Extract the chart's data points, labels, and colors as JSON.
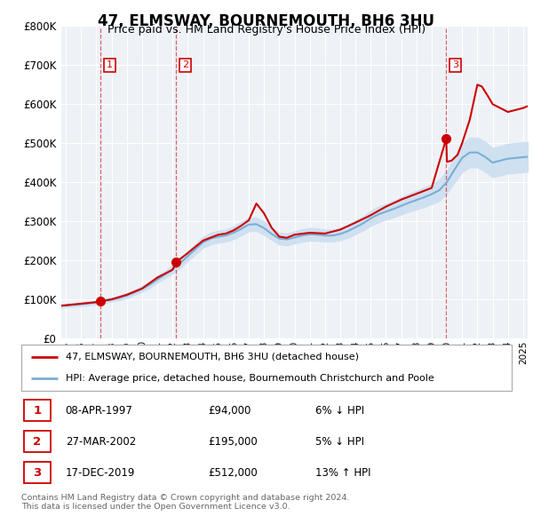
{
  "title": "47, ELMSWAY, BOURNEMOUTH, BH6 3HU",
  "subtitle": "Price paid vs. HM Land Registry's House Price Index (HPI)",
  "legend_line1": "47, ELMSWAY, BOURNEMOUTH, BH6 3HU (detached house)",
  "legend_line2": "HPI: Average price, detached house, Bournemouth Christchurch and Poole",
  "footer1": "Contains HM Land Registry data © Crown copyright and database right 2024.",
  "footer2": "This data is licensed under the Open Government Licence v3.0.",
  "ylim": [
    0,
    800000
  ],
  "yticks": [
    0,
    100000,
    200000,
    300000,
    400000,
    500000,
    600000,
    700000,
    800000
  ],
  "ytick_labels": [
    "£0",
    "£100K",
    "£200K",
    "£300K",
    "£400K",
    "£500K",
    "£600K",
    "£700K",
    "£800K"
  ],
  "xlim_start": 1994.7,
  "xlim_end": 2025.3,
  "sale_color": "#cc0000",
  "hpi_color": "#7aaed4",
  "hpi_fill_color": "#cfe0f0",
  "chart_bg": "#eef2f7",
  "transactions": [
    {
      "num": 1,
      "date": "08-APR-1997",
      "price": 94000,
      "year": 1997.27,
      "label": "1"
    },
    {
      "num": 2,
      "date": "27-MAR-2002",
      "price": 195000,
      "year": 2002.24,
      "label": "2"
    },
    {
      "num": 3,
      "date": "17-DEC-2019",
      "price": 512000,
      "year": 2019.96,
      "label": "3"
    }
  ],
  "table_rows": [
    {
      "num": "1",
      "date": "08-APR-1997",
      "price": "£94,000",
      "pct": "6% ↓ HPI"
    },
    {
      "num": "2",
      "date": "27-MAR-2002",
      "price": "£195,000",
      "pct": "5% ↓ HPI"
    },
    {
      "num": "3",
      "date": "17-DEC-2019",
      "price": "£512,000",
      "pct": "13% ↑ HPI"
    }
  ],
  "hpi_years": [
    1994.7,
    1995,
    1995.5,
    1996,
    1996.5,
    1997,
    1997.5,
    1998,
    1998.5,
    1999,
    1999.5,
    2000,
    2000.5,
    2001,
    2001.5,
    2002,
    2002.5,
    2003,
    2003.5,
    2004,
    2004.5,
    2005,
    2005.5,
    2006,
    2006.5,
    2007,
    2007.5,
    2008,
    2008.5,
    2009,
    2009.5,
    2010,
    2010.5,
    2011,
    2011.5,
    2012,
    2012.5,
    2013,
    2013.5,
    2014,
    2014.5,
    2015,
    2015.5,
    2016,
    2016.5,
    2017,
    2017.5,
    2018,
    2018.5,
    2019,
    2019.5,
    2020,
    2020.5,
    2021,
    2021.5,
    2022,
    2022.5,
    2023,
    2023.5,
    2024,
    2024.5,
    2025.3
  ],
  "hpi_values": [
    82000,
    83500,
    85000,
    87000,
    89000,
    91500,
    95000,
    99000,
    103000,
    109000,
    117000,
    126000,
    137000,
    150000,
    163000,
    176000,
    192000,
    210000,
    228000,
    246000,
    255000,
    260000,
    263000,
    270000,
    280000,
    291000,
    292000,
    282000,
    267000,
    255000,
    253000,
    258000,
    263000,
    266000,
    265000,
    263000,
    263000,
    267000,
    274000,
    284000,
    294000,
    307000,
    317000,
    324000,
    331000,
    339000,
    347000,
    354000,
    361000,
    369000,
    379000,
    400000,
    432000,
    462000,
    476000,
    476000,
    465000,
    450000,
    455000,
    460000,
    462000,
    465000
  ],
  "hpi_upper": [
    86000,
    87500,
    89000,
    91500,
    93500,
    96000,
    100000,
    104000,
    108500,
    115000,
    123000,
    133000,
    145000,
    158000,
    172000,
    186000,
    203000,
    222000,
    241000,
    260000,
    270000,
    275000,
    278000,
    286000,
    297000,
    308000,
    309000,
    299000,
    282000,
    270000,
    268000,
    273000,
    279000,
    282000,
    281000,
    278000,
    278000,
    283000,
    291000,
    301000,
    312000,
    326000,
    337000,
    344000,
    352000,
    361000,
    370000,
    378000,
    386000,
    394000,
    406000,
    428000,
    465000,
    498000,
    514000,
    514000,
    503000,
    487000,
    493000,
    498000,
    500000,
    503000
  ],
  "hpi_lower": [
    78000,
    79500,
    81000,
    82500,
    84500,
    87000,
    90000,
    94000,
    97500,
    103000,
    111000,
    119000,
    129000,
    142000,
    154000,
    166000,
    181000,
    198000,
    215000,
    232000,
    240000,
    245000,
    248000,
    254000,
    263000,
    274000,
    275000,
    265000,
    252000,
    240000,
    238000,
    243000,
    247000,
    250000,
    249000,
    248000,
    248000,
    251000,
    257000,
    267000,
    276000,
    288000,
    297000,
    304000,
    310000,
    317000,
    324000,
    330000,
    336000,
    344000,
    352000,
    372000,
    399000,
    426000,
    438000,
    438000,
    427000,
    413000,
    417000,
    422000,
    424000,
    427000
  ],
  "sale_line_years": [
    1994.7,
    1995,
    1995.5,
    1996,
    1996.5,
    1997,
    1997.27,
    1998,
    1999,
    2000,
    2001,
    2002,
    2002.24,
    2003,
    2004,
    2005,
    2005.5,
    2006,
    2006.5,
    2007,
    2007.5,
    2008,
    2008.5,
    2009,
    2009.5,
    2010,
    2011,
    2012,
    2013,
    2014,
    2015,
    2016,
    2017,
    2018,
    2019,
    2019.96,
    2020,
    2020.3,
    2020.7,
    2021,
    2021.5,
    2022,
    2022.3,
    2022.7,
    2023,
    2023.5,
    2024,
    2024.5,
    2025,
    2025.3
  ],
  "sale_line_values": [
    83000,
    84000,
    86000,
    88000,
    90000,
    92000,
    94000,
    99000,
    111000,
    127000,
    155000,
    175000,
    195000,
    218000,
    250000,
    265000,
    268000,
    276000,
    288000,
    302000,
    345000,
    320000,
    283000,
    260000,
    257000,
    265000,
    270000,
    268000,
    278000,
    296000,
    315000,
    337000,
    355000,
    370000,
    385000,
    512000,
    452000,
    455000,
    470000,
    500000,
    560000,
    650000,
    645000,
    620000,
    600000,
    590000,
    580000,
    585000,
    590000,
    595000
  ]
}
